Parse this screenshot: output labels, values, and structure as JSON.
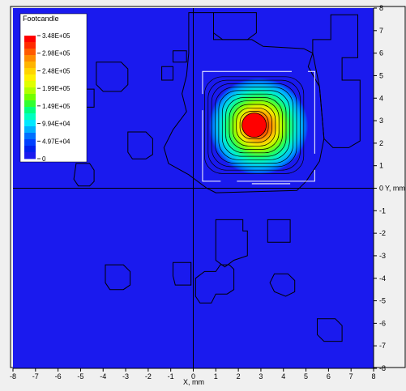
{
  "chart_data": {
    "type": "heatmap",
    "title": "",
    "xlabel": "X, mm",
    "ylabel": "Y, mm",
    "xlim": [
      -8,
      8
    ],
    "ylim": [
      -8,
      8
    ],
    "x_ticks": [
      -8,
      -7,
      -6,
      -5,
      -4,
      -3,
      -2,
      -1,
      0,
      1,
      2,
      3,
      4,
      5,
      6,
      7,
      8
    ],
    "y_ticks": [
      8,
      7,
      6,
      5,
      4,
      3,
      2,
      1,
      0,
      -1,
      -2,
      -3,
      -4,
      -5,
      -6,
      -7,
      -8
    ],
    "x_tick_labels": [
      "-8",
      "-7",
      "-6",
      "-5",
      "-4",
      "-3",
      "-2",
      "-1",
      "0",
      "1",
      "2",
      "3",
      "4",
      "5",
      "6",
      "7",
      "8"
    ],
    "y_tick_labels": [
      "8",
      "7",
      "6",
      "5",
      "4",
      "3",
      "2",
      "1",
      "0",
      "-1",
      "-2",
      "-3",
      "-4",
      "-5",
      "-6",
      "-7",
      "-8"
    ],
    "legend": {
      "title": "Footcandle",
      "placement": "top-left",
      "labels": [
        "3.48E+05",
        "2.98E+05",
        "2.48E+05",
        "1.99E+05",
        "1.49E+05",
        "9.94E+04",
        "4.97E+04",
        "0"
      ],
      "colors": [
        "#ff0000",
        "#ff2a00",
        "#ff5a00",
        "#ff8c00",
        "#ffb400",
        "#ffd400",
        "#fff000",
        "#e0ff00",
        "#b0ff00",
        "#70ff00",
        "#30ff30",
        "#00ff80",
        "#00ffc0",
        "#00e8ff",
        "#00b0ff",
        "#0070ff",
        "#0040ff",
        "#0020ee",
        "#1a1aee"
      ]
    },
    "background_level": 0,
    "peak": {
      "x": 2.7,
      "y": 2.8,
      "value": 348000
    },
    "hotspot_extent": {
      "x": [
        0.7,
        5.1
      ],
      "y": [
        0.6,
        4.9
      ]
    },
    "crosshair": {
      "x": 0,
      "y": 0
    },
    "grid": false
  }
}
